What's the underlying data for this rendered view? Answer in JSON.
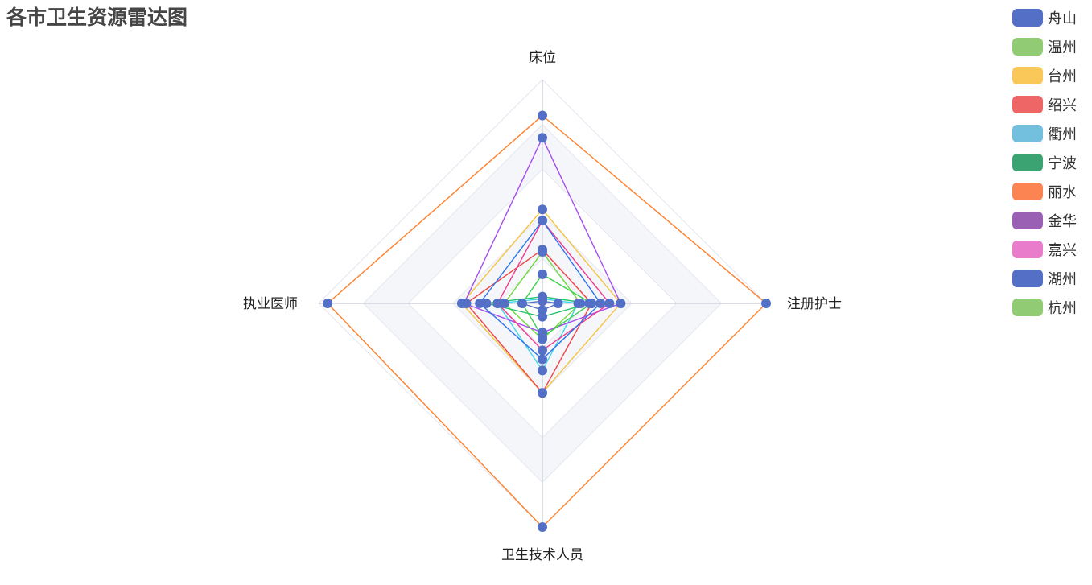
{
  "title": "各市卫生资源雷达图",
  "chart_data": {
    "type": "radar",
    "title": "各市卫生资源雷达图",
    "indicators": [
      "床位",
      "注册护士",
      "卫生技术人员",
      "执业医师"
    ],
    "max": 1.0,
    "split_number": 5,
    "split_area_shading": true,
    "legend_position": "top-right",
    "series": [
      {
        "name": "舟山",
        "color": "#5470c6",
        "line_color": "#5470c6",
        "values": [
          0.01,
          0.07,
          0.03,
          0.09
        ]
      },
      {
        "name": "温州",
        "color": "#91cc75",
        "line_color": "#6bd93a",
        "values": [
          0.23,
          0.17,
          0.16,
          0.17
        ]
      },
      {
        "name": "台州",
        "color": "#fac858",
        "line_color": "#f5c342",
        "values": [
          0.42,
          0.35,
          0.4,
          0.36
        ]
      },
      {
        "name": "绍兴",
        "color": "#ee6666",
        "line_color": "#ee4444",
        "values": [
          0.24,
          0.22,
          0.4,
          0.34
        ]
      },
      {
        "name": "衢州",
        "color": "#73c0de",
        "line_color": "#3fd6ea",
        "values": [
          0.02,
          0.16,
          0.3,
          0.2
        ]
      },
      {
        "name": "宁波",
        "color": "#3ba272",
        "line_color": "#22c46a",
        "values": [
          0.03,
          0.21,
          0.06,
          0.25
        ]
      },
      {
        "name": "丽水",
        "color": "#fc8452",
        "line_color": "#ff7f2a",
        "values": [
          0.84,
          1.0,
          1.0,
          0.96
        ]
      },
      {
        "name": "金华",
        "color": "#9a60b4",
        "line_color": "#a64cf0",
        "values": [
          0.74,
          0.35,
          0.13,
          0.35
        ]
      },
      {
        "name": "嘉兴",
        "color": "#ea7ccc",
        "line_color": "#f03a8e",
        "values": [
          0.37,
          0.3,
          0.21,
          0.2
        ]
      },
      {
        "name": "湖州",
        "color": "#5470c6",
        "line_color": "#2b74ec",
        "values": [
          0.37,
          0.26,
          0.25,
          0.28
        ]
      },
      {
        "name": "杭州",
        "color": "#91cc75",
        "line_color": "#3bd04a",
        "values": [
          0.13,
          0.22,
          0.15,
          0.09
        ]
      }
    ],
    "point_color": "#5470c6"
  }
}
